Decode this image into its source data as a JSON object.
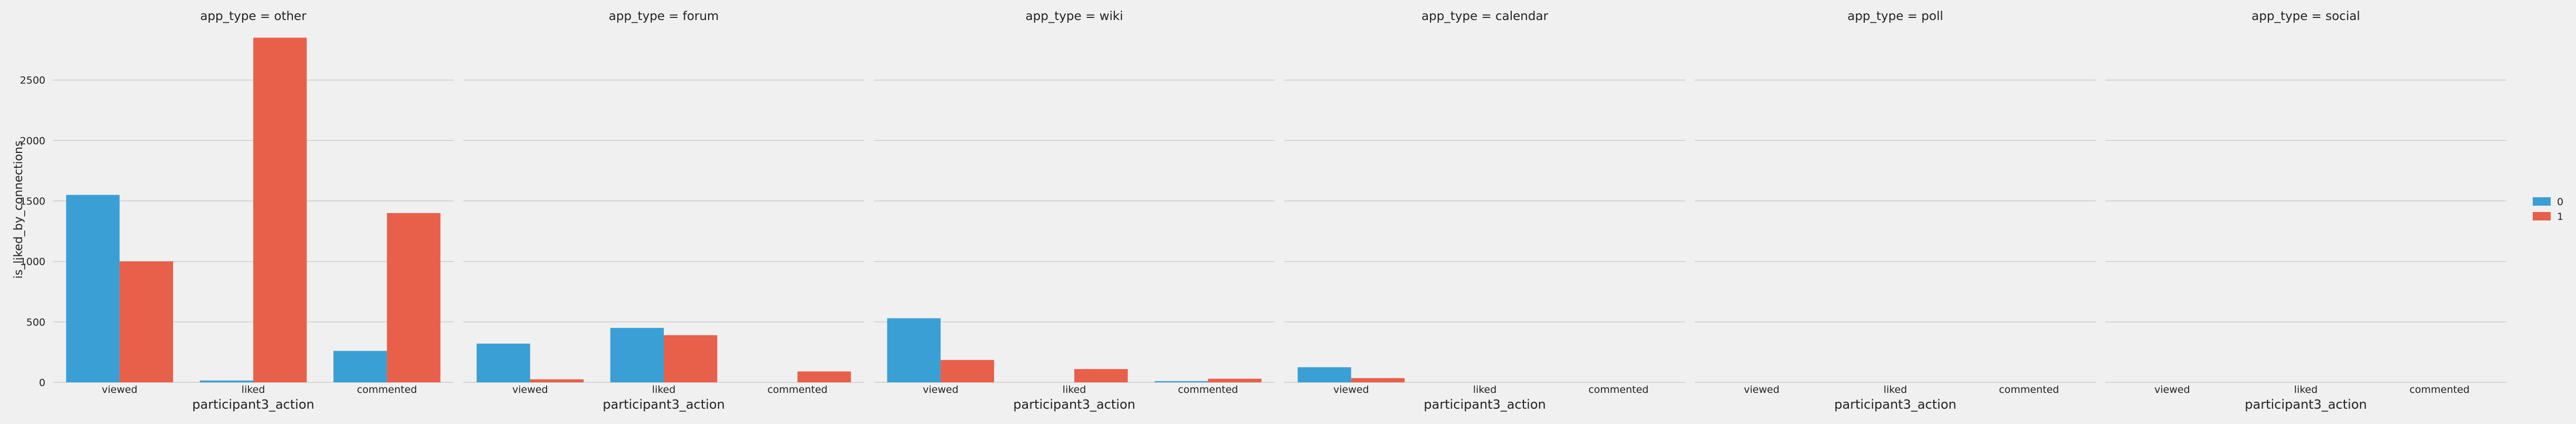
{
  "chart_data": {
    "type": "bar",
    "facet_variable": "app_type",
    "xlabel": "participant3_action",
    "ylabel": "is_liked_by_connections",
    "ylim": [
      0,
      2900
    ],
    "yticks": [
      0,
      500,
      1000,
      1500,
      2000,
      2500
    ],
    "grid": true,
    "legend_placement": "right",
    "categories": [
      "viewed",
      "liked",
      "commented"
    ],
    "series_colors": [
      "#3a9fd5",
      "#e8604a"
    ],
    "legend": [
      "0",
      "1"
    ],
    "facets": [
      {
        "title": "app_type = other",
        "series": [
          {
            "name": "0",
            "values": [
              1550,
              15,
              260
            ]
          },
          {
            "name": "1",
            "values": [
              1000,
              2850,
              1400
            ]
          }
        ]
      },
      {
        "title": "app_type = forum",
        "series": [
          {
            "name": "0",
            "values": [
              320,
              450,
              0
            ]
          },
          {
            "name": "1",
            "values": [
              25,
              390,
              90
            ]
          }
        ]
      },
      {
        "title": "app_type = wiki",
        "series": [
          {
            "name": "0",
            "values": [
              530,
              0,
              10
            ]
          },
          {
            "name": "1",
            "values": [
              185,
              110,
              30
            ]
          }
        ]
      },
      {
        "title": "app_type = calendar",
        "series": [
          {
            "name": "0",
            "values": [
              125,
              0,
              0
            ]
          },
          {
            "name": "1",
            "values": [
              35,
              0,
              0
            ]
          }
        ]
      },
      {
        "title": "app_type = poll",
        "series": [
          {
            "name": "0",
            "values": [
              0,
              0,
              0
            ]
          },
          {
            "name": "1",
            "values": [
              0,
              0,
              0
            ]
          }
        ]
      },
      {
        "title": "app_type = social",
        "series": [
          {
            "name": "0",
            "values": [
              0,
              0,
              0
            ]
          },
          {
            "name": "1",
            "values": [
              0,
              0,
              0
            ]
          }
        ]
      }
    ]
  }
}
